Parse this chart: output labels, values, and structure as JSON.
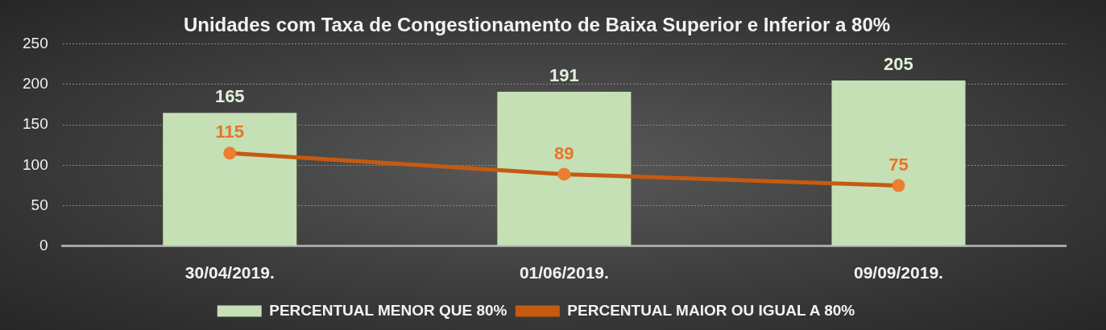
{
  "chart_data": {
    "type": "bar",
    "title": "Unidades com Taxa de Congestionamento de Baixa Superior e Inferior a 80%",
    "categories": [
      "30/04/2019.",
      "01/06/2019.",
      "09/09/2019."
    ],
    "series": [
      {
        "name": "PERCENTUAL MENOR QUE 80%",
        "color": "#c5e0b4",
        "values": [
          165,
          191,
          205
        ]
      },
      {
        "name": "PERCENTUAL MAIOR OU IGUAL A 80%",
        "type": "line",
        "color": "#c55a11",
        "values": [
          115,
          89,
          75
        ]
      }
    ],
    "ylim": [
      0,
      250
    ],
    "yticks": [
      0,
      50,
      100,
      150,
      200,
      250
    ],
    "grid": "y",
    "legend": "bottom",
    "marker": "circle",
    "line_style": "solid",
    "data_labels": true
  }
}
